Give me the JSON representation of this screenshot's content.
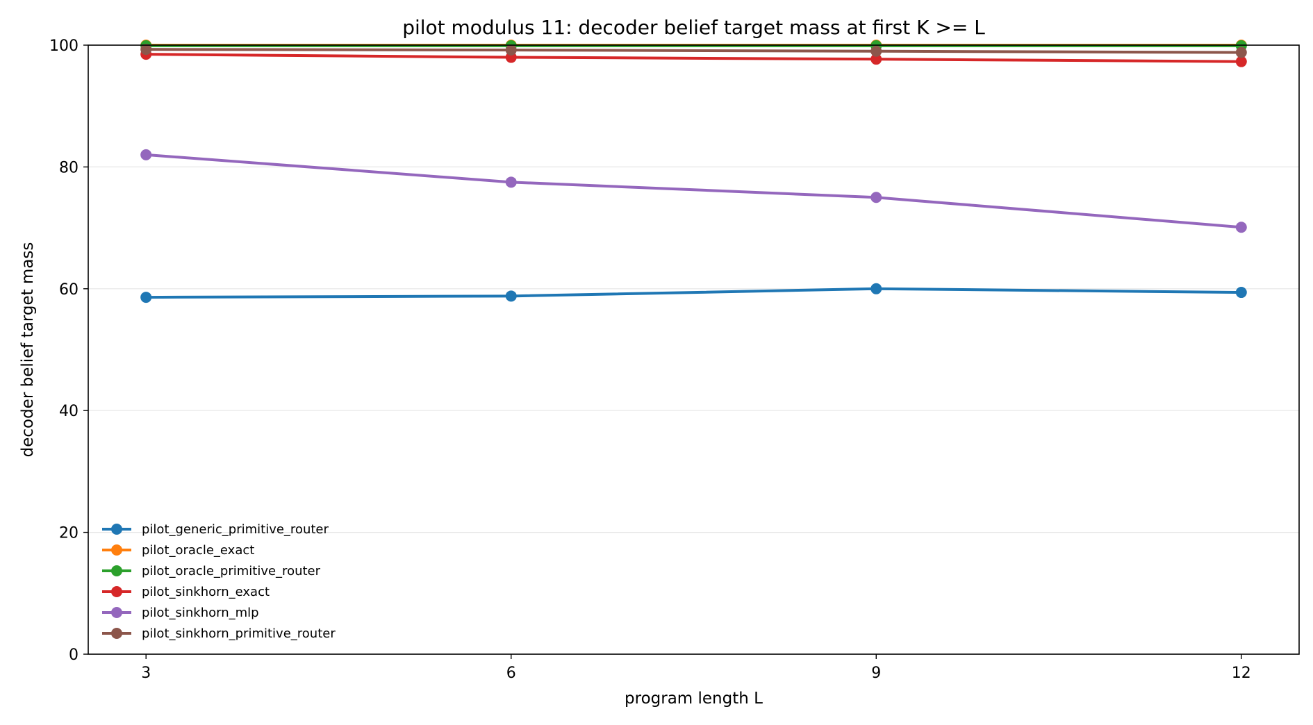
{
  "chart_data": {
    "type": "line",
    "title": "pilot modulus 11: decoder belief target mass at first K >= L",
    "xlabel": "program length L",
    "ylabel": "decoder belief target mass",
    "x": [
      3,
      6,
      9,
      12
    ],
    "xticks": [
      "3",
      "6",
      "9",
      "12"
    ],
    "yticks": [
      "0",
      "20",
      "40",
      "60",
      "80",
      "100"
    ],
    "ylim": [
      0,
      100
    ],
    "grid": "horizontal",
    "legend_position": "lower-left",
    "series": [
      {
        "name": "pilot_generic_primitive_router",
        "color": "#1f77b4",
        "values": [
          58.6,
          58.8,
          60.0,
          59.4
        ]
      },
      {
        "name": "pilot_oracle_exact",
        "color": "#ff7f0e",
        "values": [
          100.0,
          100.0,
          100.0,
          100.0
        ]
      },
      {
        "name": "pilot_oracle_primitive_router",
        "color": "#2ca02c",
        "values": [
          99.9,
          99.9,
          99.9,
          99.9
        ]
      },
      {
        "name": "pilot_sinkhorn_exact",
        "color": "#d62728",
        "values": [
          98.5,
          98.0,
          97.7,
          97.3
        ]
      },
      {
        "name": "pilot_sinkhorn_mlp",
        "color": "#9467bd",
        "values": [
          82.0,
          77.5,
          75.0,
          70.1
        ]
      },
      {
        "name": "pilot_sinkhorn_primitive_router",
        "color": "#8c564b",
        "values": [
          99.3,
          99.2,
          99.0,
          98.8
        ]
      }
    ]
  }
}
